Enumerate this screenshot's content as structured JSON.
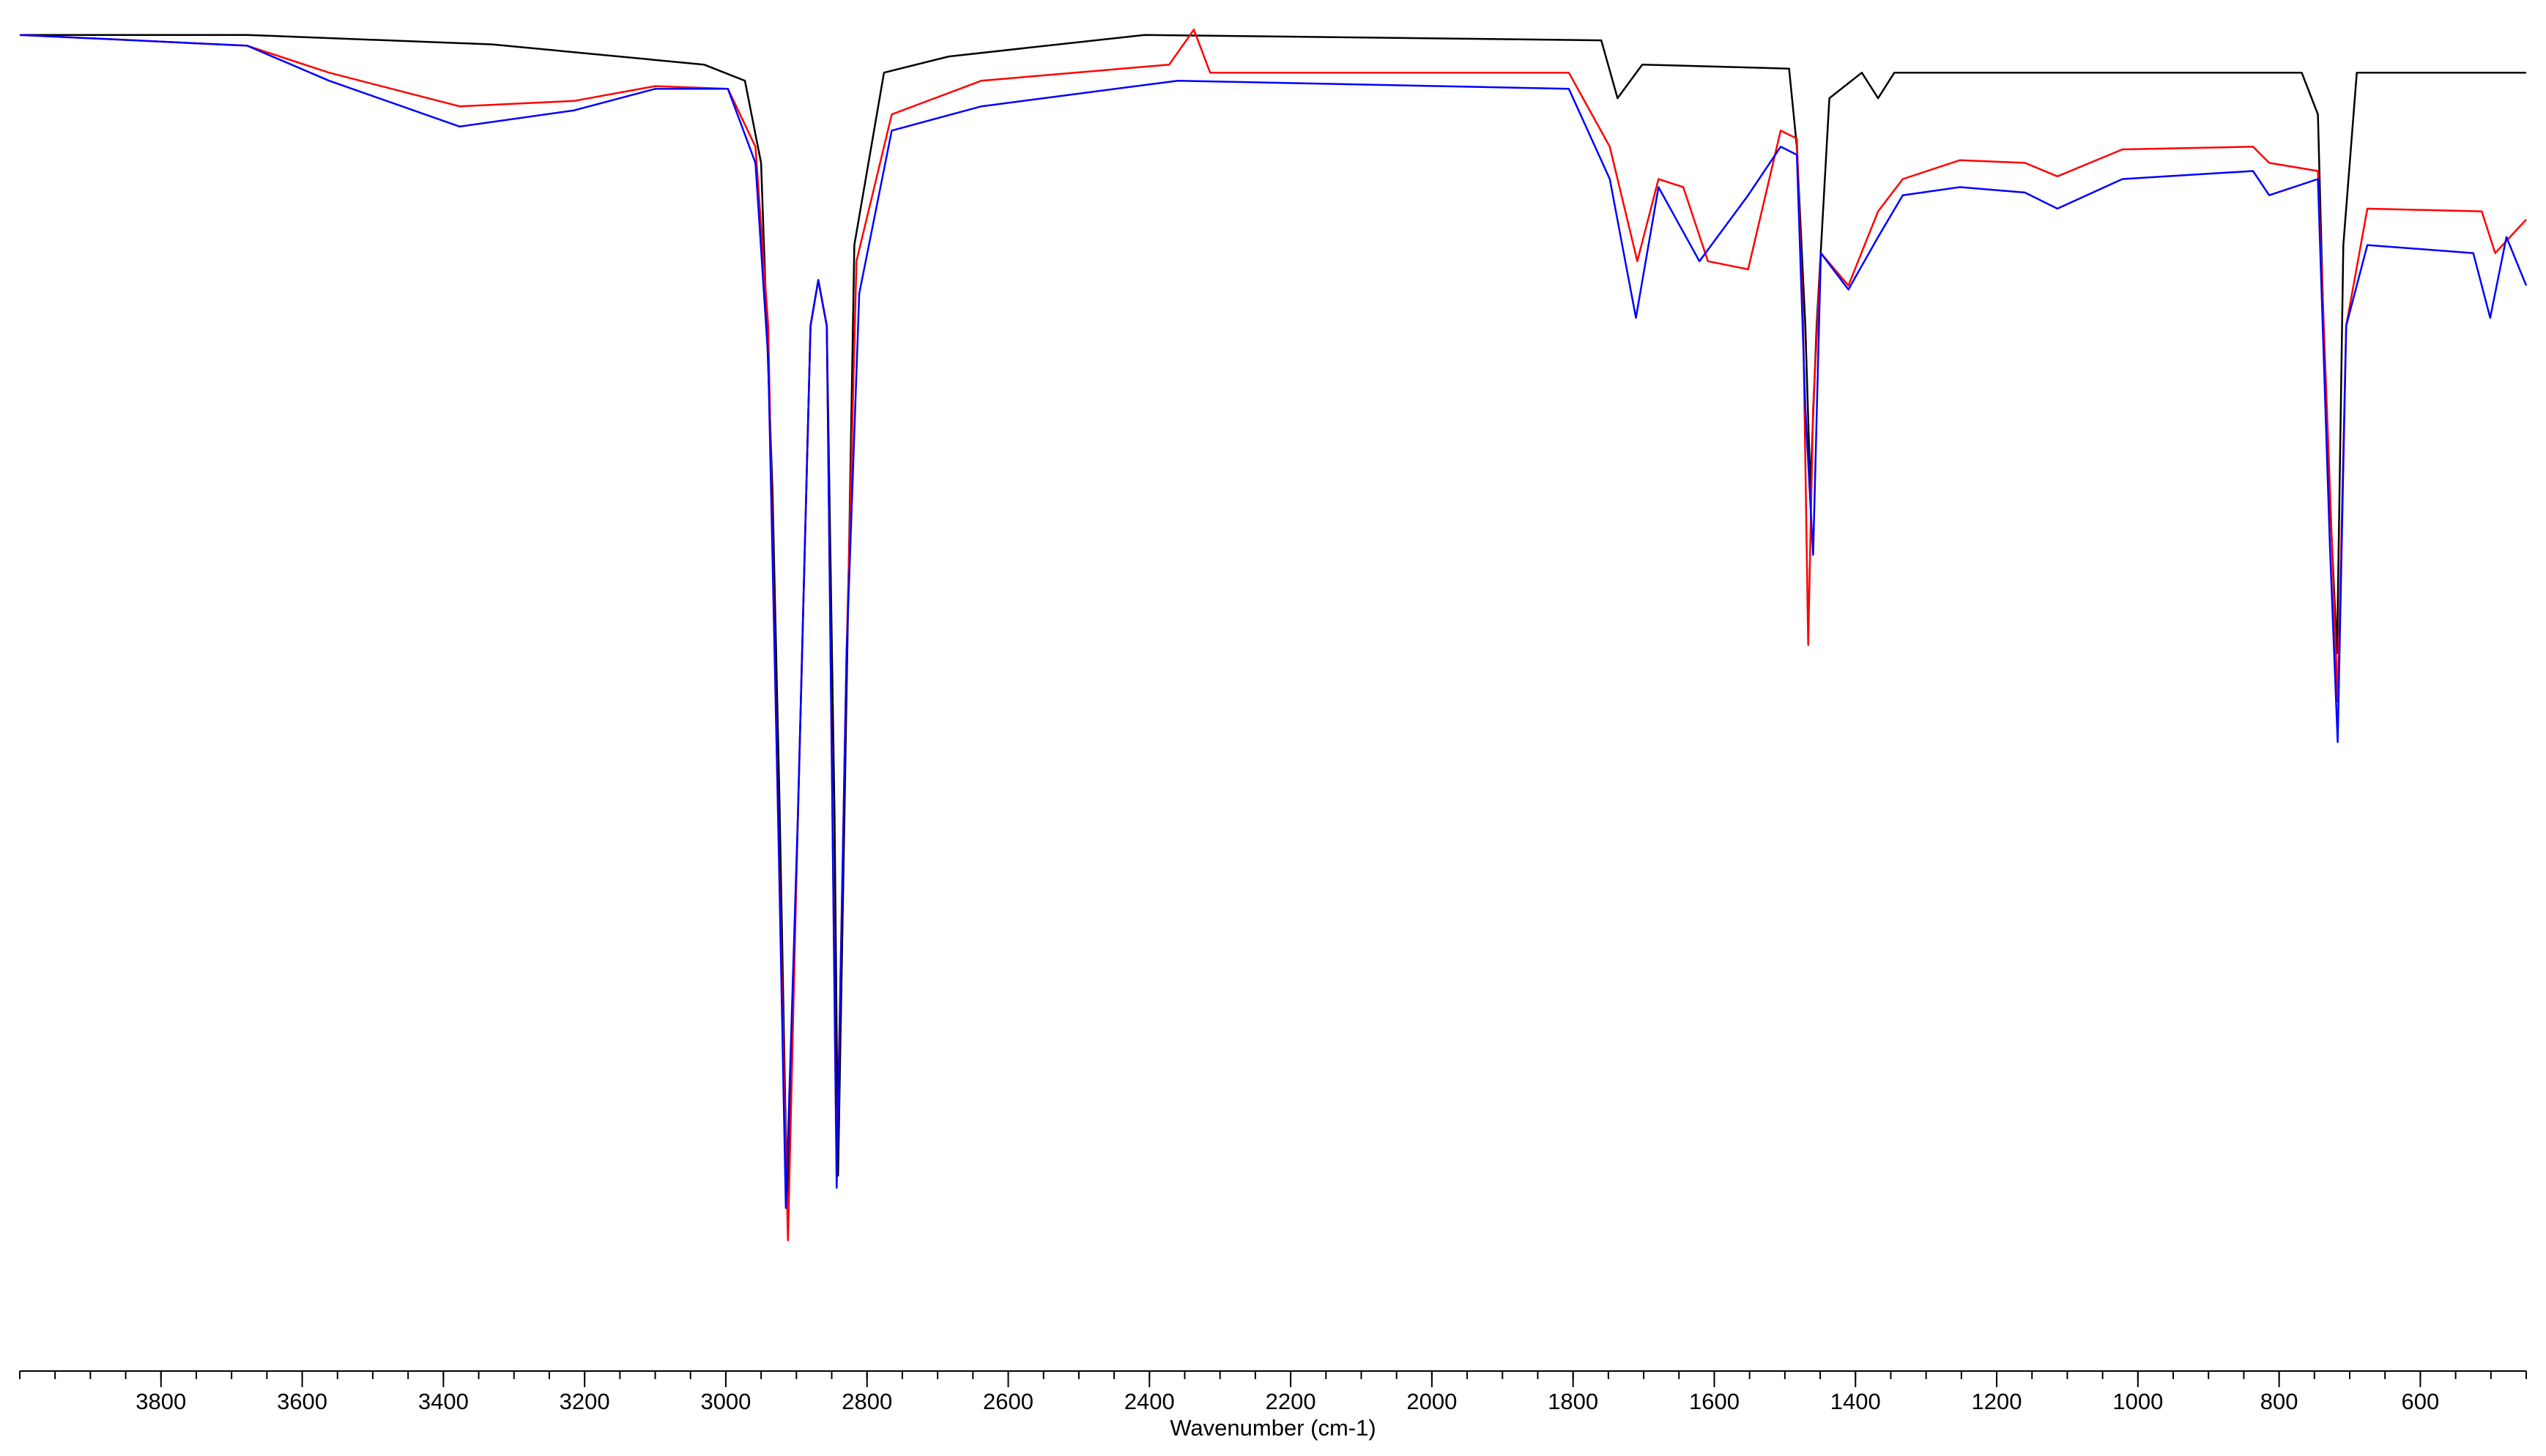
{
  "chart_data": {
    "type": "line",
    "x_label": "Wavenumber (cm-1)",
    "xlim": [
      4000,
      450
    ],
    "ylim": [
      0,
      100
    ],
    "xticks": [
      3800,
      3600,
      3400,
      3200,
      3000,
      2800,
      2600,
      2400,
      2200,
      2000,
      1800,
      1600,
      1400,
      1200,
      1000,
      800,
      600
    ],
    "xticks_minor": [
      4000,
      3950,
      3900,
      3850,
      3800,
      3750,
      3700,
      3650,
      3600,
      3550,
      3500,
      3450,
      3400,
      3350,
      3300,
      3250,
      3200,
      3150,
      3100,
      3050,
      3000,
      2950,
      2900,
      2850,
      2800,
      2750,
      2700,
      2650,
      2600,
      2550,
      2500,
      2450,
      2400,
      2350,
      2300,
      2250,
      2200,
      2150,
      2100,
      2050,
      2000,
      1950,
      1900,
      1850,
      1800,
      1750,
      1700,
      1650,
      1600,
      1550,
      1500,
      1450,
      1400,
      1350,
      1300,
      1250,
      1200,
      1150,
      1100,
      1050,
      1000,
      950,
      900,
      850,
      800,
      750,
      700,
      650,
      600,
      550,
      500,
      450
    ],
    "series": [
      {
        "color": "#000000",
        "x": [
          4000,
          3678,
          3331,
          3031,
          2973,
          2950,
          2934,
          2924,
          2913,
          2899,
          2880,
          2869,
          2857,
          2846,
          2841,
          2832,
          2818,
          2776,
          2684,
          2407,
          1760,
          1737,
          1702,
          1494,
          1483,
          1471,
          1464,
          1455,
          1437,
          1391,
          1368,
          1345,
          1022,
          768,
          745,
          734,
          718,
          709,
          690,
          450
        ],
        "values": [
          99.2,
          99.2,
          98.5,
          97,
          95.8,
          89.7,
          65.5,
          42.4,
          12.1,
          38.8,
          77.6,
          81,
          77.6,
          41.2,
          14.5,
          41.2,
          83.6,
          96.4,
          97.6,
          99.2,
          98.8,
          94.5,
          97,
          96.7,
          90.9,
          77.6,
          65.5,
          77.6,
          94.5,
          96.4,
          94.5,
          96.4,
          96.4,
          96.4,
          93.3,
          71.5,
          53.3,
          83.6,
          96.4,
          96.4
        ]
      },
      {
        "color": "#ff0000",
        "x": [
          4000,
          3678,
          3562,
          3377,
          3215,
          3100,
          2997,
          2958,
          2940,
          2926,
          2912,
          2898,
          2880,
          2869,
          2857,
          2843,
          2829,
          2815,
          2765,
          2638,
          2372,
          2337,
          2314,
          1806,
          1748,
          1709,
          1679,
          1644,
          1609,
          1552,
          1506,
          1483,
          1474,
          1467,
          1460,
          1449,
          1410,
          1368,
          1333,
          1252,
          1160,
          1114,
          1022,
          837,
          814,
          745,
          728,
          717,
          705,
          675,
          513,
          494,
          450
        ],
        "values": [
          99.2,
          98.4,
          96.4,
          93.9,
          94.3,
          95.4,
          95.2,
          90.9,
          77.6,
          41.2,
          9.7,
          41.2,
          77.6,
          81,
          77.6,
          14.5,
          53.3,
          82.4,
          93.3,
          95.8,
          97,
          99.6,
          96.4,
          96.4,
          90.9,
          82.4,
          88.5,
          87.9,
          82.4,
          81.8,
          92.1,
          91.5,
          77.6,
          53.9,
          71.5,
          83,
          80.6,
          86.1,
          88.5,
          89.9,
          89.7,
          88.7,
          90.7,
          90.9,
          89.7,
          89.1,
          65.5,
          49.7,
          77.6,
          86.3,
          86.1,
          83,
          85.5
        ]
      },
      {
        "color": "#0000ff",
        "x": [
          4000,
          3678,
          3562,
          3377,
          3215,
          3100,
          2997,
          2958,
          2940,
          2926,
          2915,
          2898,
          2880,
          2869,
          2857,
          2843,
          2829,
          2811,
          2765,
          2638,
          2360,
          1806,
          1748,
          1711,
          1679,
          1621,
          1552,
          1506,
          1483,
          1471,
          1460,
          1449,
          1410,
          1368,
          1333,
          1252,
          1160,
          1114,
          1022,
          837,
          814,
          745,
          728,
          717,
          705,
          675,
          525,
          501,
          478,
          450
        ],
        "values": [
          99.2,
          98.4,
          95.8,
          92.4,
          93.6,
          95.2,
          95.2,
          89.7,
          75.2,
          41.2,
          12.1,
          41.2,
          77.6,
          81,
          77.6,
          13.6,
          53.3,
          80,
          92.1,
          93.9,
          95.8,
          95.2,
          88.5,
          78.2,
          87.9,
          82.4,
          87.3,
          90.9,
          90.3,
          71.5,
          60.6,
          83,
          80.3,
          84.2,
          87.3,
          87.9,
          87.5,
          86.3,
          88.5,
          89.1,
          87.3,
          88.5,
          61.2,
          46.7,
          77.6,
          83.6,
          83,
          78.2,
          84.2,
          80.6
        ]
      }
    ]
  }
}
